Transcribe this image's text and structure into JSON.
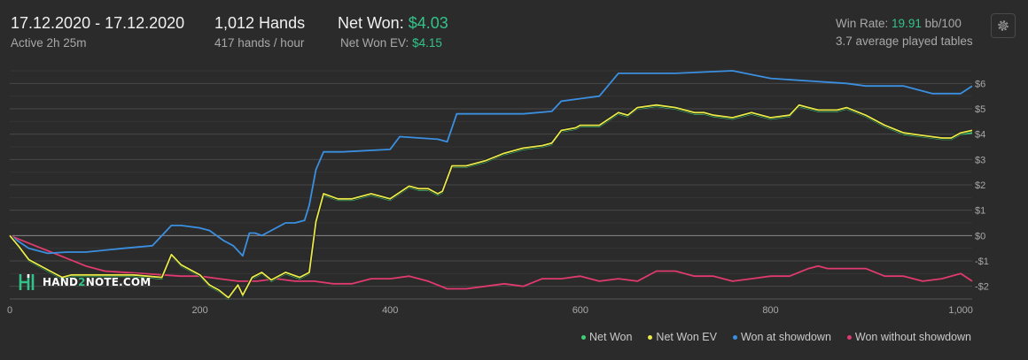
{
  "header": {
    "date_range": "17.12.2020 - 17.12.2020",
    "active": "Active 2h 25m",
    "hands": "1,012 Hands",
    "hands_per_hour": "417 hands / hour",
    "net_won_label": "Net Won:",
    "net_won_value": "$4.03",
    "net_won_ev_label": "Net Won  EV:",
    "net_won_ev_value": "$4.15",
    "win_rate_label": "Win Rate:",
    "win_rate_value": "19.91",
    "win_rate_unit": "bb/100",
    "avg_tables": "3.7 average played tables"
  },
  "logo": {
    "part1": "HAND",
    "part2": "2",
    "part3": "NOTE.COM"
  },
  "colors": {
    "net_won": "#3dd17a",
    "net_won_ev": "#e8e84a",
    "showdown": "#3b8fe0",
    "non_showdown": "#e03a6e",
    "accent": "#33c38a"
  },
  "chart_data": {
    "type": "line",
    "xlim": [
      0,
      1012
    ],
    "ylim": [
      -2.5,
      6.5
    ],
    "x_ticks": [
      0,
      200,
      400,
      600,
      800,
      1000
    ],
    "x_tick_labels": [
      "0",
      "200",
      "400",
      "600",
      "800",
      "1,000"
    ],
    "y_ticks": [
      -2,
      -1,
      0,
      1,
      2,
      3,
      4,
      5,
      6
    ],
    "y_tick_labels": [
      "-$2",
      "-$1",
      "$0",
      "$1",
      "$2",
      "$3",
      "$4",
      "$5",
      "$6"
    ],
    "grid": true,
    "legend_position": "bottom-right",
    "series": [
      {
        "name": "Net Won",
        "color_key": "net_won",
        "x": [
          0,
          10,
          20,
          30,
          40,
          55,
          65,
          80,
          100,
          130,
          160,
          170,
          180,
          200,
          210,
          220,
          230,
          240,
          245,
          255,
          265,
          275,
          290,
          305,
          315,
          322,
          330,
          345,
          360,
          380,
          400,
          420,
          430,
          440,
          450,
          455,
          465,
          480,
          500,
          520,
          540,
          560,
          570,
          580,
          595,
          600,
          620,
          640,
          650,
          660,
          680,
          700,
          710,
          720,
          730,
          740,
          760,
          780,
          800,
          820,
          830,
          840,
          850,
          870,
          880,
          900,
          920,
          940,
          960,
          980,
          990,
          1000,
          1012
        ],
        "y": [
          0,
          -0.5,
          -1.0,
          -1.2,
          -1.4,
          -1.7,
          -1.6,
          -1.6,
          -1.6,
          -1.6,
          -1.7,
          -0.8,
          -1.2,
          -1.6,
          -2.0,
          -2.2,
          -2.5,
          -2.0,
          -2.4,
          -1.7,
          -1.5,
          -1.8,
          -1.5,
          -1.7,
          -1.5,
          0.5,
          1.6,
          1.4,
          1.4,
          1.6,
          1.4,
          1.9,
          1.8,
          1.8,
          1.6,
          1.7,
          2.7,
          2.7,
          2.9,
          3.2,
          3.4,
          3.5,
          3.6,
          4.1,
          4.2,
          4.3,
          4.3,
          4.8,
          4.7,
          5.0,
          5.1,
          5.0,
          4.9,
          4.8,
          4.8,
          4.7,
          4.6,
          4.8,
          4.6,
          4.7,
          5.1,
          5.0,
          4.9,
          4.9,
          5.0,
          4.7,
          4.3,
          4.0,
          3.9,
          3.8,
          3.8,
          4.0,
          4.05
        ]
      },
      {
        "name": "Net Won  EV",
        "color_key": "net_won_ev",
        "x": [
          0,
          10,
          20,
          30,
          40,
          55,
          65,
          80,
          100,
          130,
          160,
          170,
          180,
          200,
          210,
          220,
          230,
          240,
          245,
          255,
          265,
          275,
          290,
          305,
          315,
          322,
          330,
          345,
          360,
          380,
          400,
          420,
          430,
          440,
          450,
          455,
          465,
          480,
          500,
          520,
          540,
          560,
          570,
          580,
          595,
          600,
          620,
          640,
          650,
          660,
          680,
          700,
          710,
          720,
          730,
          740,
          760,
          780,
          800,
          820,
          830,
          840,
          850,
          870,
          880,
          900,
          920,
          940,
          960,
          980,
          990,
          1000,
          1012
        ],
        "y": [
          0,
          -0.45,
          -0.95,
          -1.15,
          -1.35,
          -1.65,
          -1.55,
          -1.55,
          -1.55,
          -1.55,
          -1.65,
          -0.75,
          -1.15,
          -1.55,
          -1.95,
          -2.15,
          -2.45,
          -1.95,
          -2.35,
          -1.65,
          -1.45,
          -1.75,
          -1.45,
          -1.65,
          -1.45,
          0.55,
          1.65,
          1.45,
          1.45,
          1.65,
          1.45,
          1.95,
          1.85,
          1.85,
          1.65,
          1.75,
          2.75,
          2.75,
          2.95,
          3.25,
          3.45,
          3.55,
          3.65,
          4.15,
          4.25,
          4.35,
          4.35,
          4.85,
          4.75,
          5.05,
          5.15,
          5.05,
          4.95,
          4.85,
          4.85,
          4.75,
          4.65,
          4.85,
          4.65,
          4.75,
          5.15,
          5.05,
          4.95,
          4.95,
          5.05,
          4.75,
          4.35,
          4.05,
          3.95,
          3.85,
          3.85,
          4.05,
          4.15
        ]
      },
      {
        "name": "Won at showdown",
        "color_key": "showdown",
        "x": [
          0,
          20,
          40,
          60,
          80,
          120,
          150,
          170,
          180,
          200,
          210,
          225,
          235,
          245,
          252,
          258,
          265,
          270,
          290,
          300,
          310,
          315,
          322,
          330,
          350,
          400,
          410,
          450,
          460,
          470,
          500,
          540,
          570,
          580,
          600,
          620,
          640,
          650,
          660,
          700,
          760,
          800,
          840,
          880,
          900,
          920,
          940,
          970,
          980,
          1000,
          1012
        ],
        "y": [
          0,
          -0.5,
          -0.7,
          -0.65,
          -0.65,
          -0.5,
          -0.4,
          0.4,
          0.4,
          0.3,
          0.2,
          -0.2,
          -0.4,
          -0.8,
          0.1,
          0.1,
          0.0,
          0.1,
          0.5,
          0.5,
          0.6,
          1.2,
          2.6,
          3.3,
          3.3,
          3.4,
          3.9,
          3.8,
          3.7,
          4.8,
          4.8,
          4.8,
          4.9,
          5.3,
          5.4,
          5.5,
          6.4,
          6.4,
          6.4,
          6.4,
          6.5,
          6.2,
          6.1,
          6.0,
          5.9,
          5.9,
          5.9,
          5.6,
          5.6,
          5.6,
          5.9
        ]
      },
      {
        "name": "Won without showdown",
        "color_key": "non_showdown",
        "x": [
          0,
          20,
          40,
          60,
          80,
          100,
          140,
          180,
          200,
          220,
          240,
          260,
          280,
          300,
          320,
          340,
          360,
          380,
          400,
          420,
          440,
          460,
          480,
          500,
          520,
          540,
          560,
          580,
          600,
          620,
          640,
          660,
          680,
          700,
          720,
          740,
          760,
          780,
          800,
          820,
          840,
          850,
          860,
          880,
          900,
          920,
          940,
          960,
          980,
          1000,
          1012
        ],
        "y": [
          0,
          -0.3,
          -0.6,
          -0.9,
          -1.2,
          -1.4,
          -1.5,
          -1.6,
          -1.6,
          -1.7,
          -1.8,
          -1.8,
          -1.7,
          -1.8,
          -1.8,
          -1.9,
          -1.9,
          -1.7,
          -1.7,
          -1.6,
          -1.8,
          -2.1,
          -2.1,
          -2.0,
          -1.9,
          -2.0,
          -1.7,
          -1.7,
          -1.6,
          -1.8,
          -1.7,
          -1.8,
          -1.4,
          -1.4,
          -1.6,
          -1.6,
          -1.8,
          -1.7,
          -1.6,
          -1.6,
          -1.3,
          -1.2,
          -1.3,
          -1.3,
          -1.3,
          -1.6,
          -1.6,
          -1.8,
          -1.7,
          -1.5,
          -1.8
        ]
      }
    ]
  },
  "legend": [
    "Net Won",
    "Net Won  EV",
    "Won at showdown",
    "Won without showdown"
  ]
}
